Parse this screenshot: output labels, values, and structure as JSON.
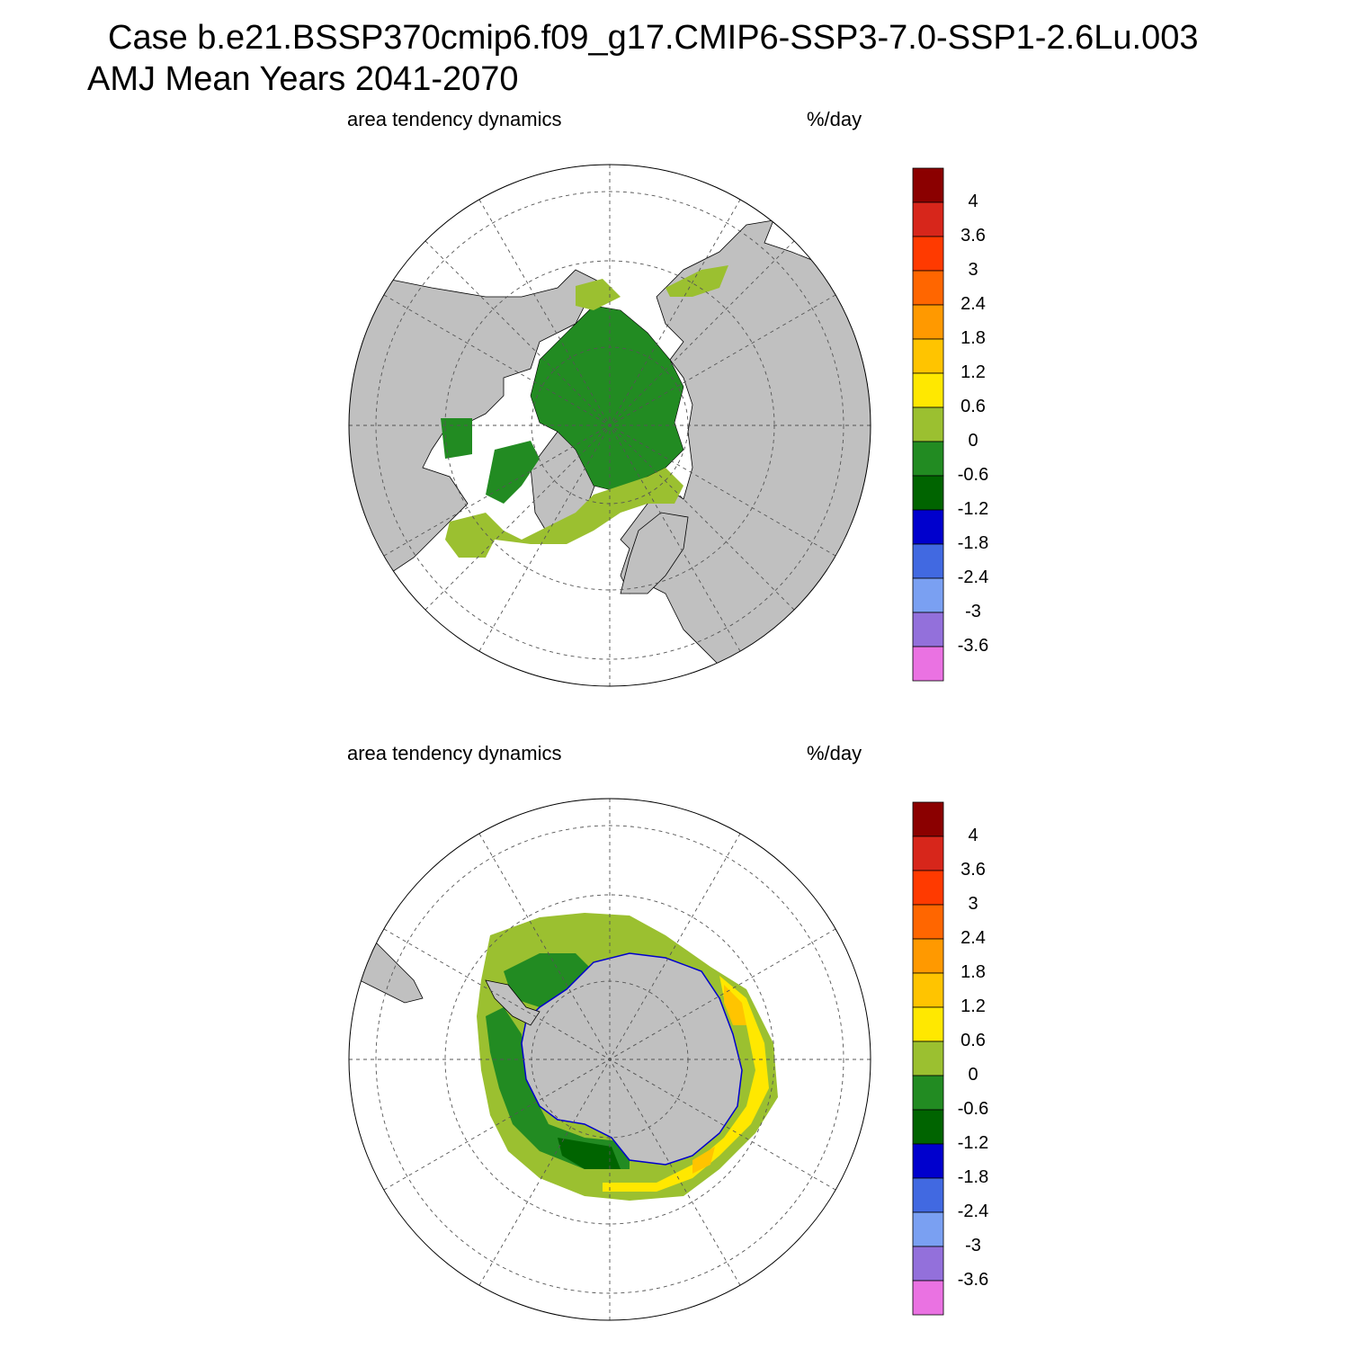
{
  "header": {
    "title_line1": "Case b.e21.BSSP370cmip6.f09_g17.CMIP6-SSP3-7.0-SSP1-2.6Lu.003",
    "title_line2": "AMJ Mean   Years 2041-2070"
  },
  "colorbar": {
    "colors": [
      "#8b0000",
      "#d7261b",
      "#ff3a00",
      "#ff6600",
      "#ff9900",
      "#ffc400",
      "#ffe800",
      "#9bc030",
      "#228b22",
      "#006400",
      "#0000cd",
      "#4169e1",
      "#7aa0f2",
      "#9370db",
      "#ea72e2"
    ],
    "labels": [
      "4",
      "3.6",
      "3",
      "2.4",
      "1.8",
      "1.2",
      "0.6",
      "0",
      "-0.6",
      "-1.2",
      "-1.8",
      "-2.4",
      "-3",
      "-3.6"
    ]
  },
  "panels": [
    {
      "id": "north",
      "left_label": "area tendency dynamics",
      "right_label": "%/day",
      "hemisphere": "NH"
    },
    {
      "id": "south",
      "left_label": "area tendency dynamics",
      "right_label": "%/day",
      "hemisphere": "SH"
    }
  ],
  "colors": {
    "land": "#c0c0c0",
    "ocean": "#ffffff",
    "grid": "#555555"
  }
}
